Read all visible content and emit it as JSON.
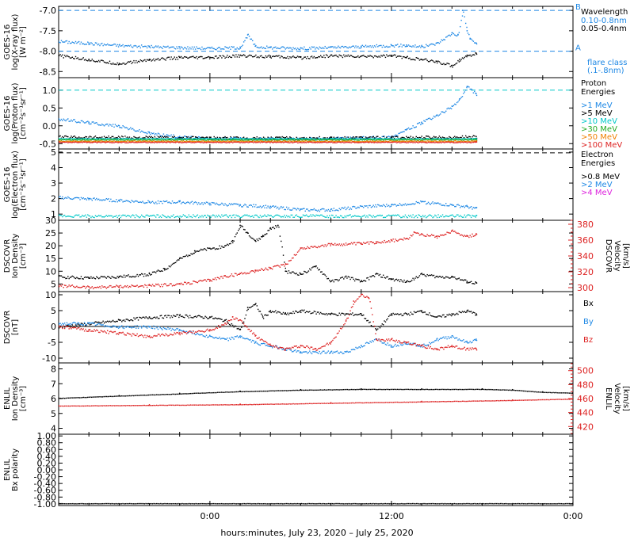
{
  "chart_data": {
    "type": "line",
    "xlabel": "hours:minutes, July 23, 2020 – July 25, 2020",
    "x_ticks": [
      "0:00",
      "12:00",
      "0:00"
    ],
    "panels": [
      {
        "id": "xray",
        "ylabel": [
          "GOES-16",
          "log(X-ray flux)",
          "[W m⁻²]"
        ],
        "yticks": [
          "-7.0",
          "-7.5",
          "-8.0",
          "-8.5"
        ],
        "ylim": [
          -8.65,
          -6.9
        ],
        "legend": {
          "title": "Wavelength",
          "items": [
            {
              "text": "0.10-0.8nm",
              "color": "#1e88e5"
            },
            {
              "text": "0.05-0.4nm",
              "color": "#000000"
            }
          ],
          "note": [
            "flare class",
            "(.1-.8nm)"
          ]
        },
        "flare_letters": [
          "B",
          "A"
        ],
        "reference_lines": [
          {
            "value": -7.0,
            "color": "#1e88e5"
          },
          {
            "value": -8.0,
            "color": "#1e88e5"
          }
        ],
        "series": [
          {
            "color": "#1e88e5",
            "x": [
              -10,
              -8,
              -6,
              -4,
              -2,
              0,
              2,
              2.5,
              3,
              4,
              6,
              8,
              10,
              12,
              13,
              14,
              15,
              16,
              16.4,
              16.7,
              17,
              17.2,
              17.6
            ],
            "y": [
              -7.75,
              -7.8,
              -7.85,
              -7.88,
              -7.9,
              -7.92,
              -7.9,
              -7.6,
              -7.88,
              -7.9,
              -7.92,
              -7.9,
              -7.88,
              -7.85,
              -7.85,
              -7.88,
              -7.8,
              -7.55,
              -7.6,
              -7.0,
              -7.5,
              -7.7,
              -7.8
            ]
          },
          {
            "color": "#000000",
            "x": [
              -10,
              -8,
              -6,
              -4,
              -2,
              0,
              2,
              4,
              6,
              8,
              10,
              12,
              13,
              14,
              15,
              16,
              16.5,
              17,
              17.6
            ],
            "y": [
              -8.1,
              -8.2,
              -8.3,
              -8.2,
              -8.15,
              -8.15,
              -8.1,
              -8.12,
              -8.15,
              -8.1,
              -8.12,
              -8.1,
              -8.15,
              -8.2,
              -8.25,
              -8.35,
              -8.2,
              -8.1,
              -8.05
            ]
          }
        ]
      },
      {
        "id": "proton",
        "ylabel": [
          "GOES-16",
          "log(Proton flux)",
          "[cm⁻²s⁻¹sr⁻¹]"
        ],
        "yticks": [
          "1.0",
          "0.5",
          "0.0",
          "-0.5"
        ],
        "ylim": [
          -0.65,
          1.35
        ],
        "legend": {
          "title": "Proton",
          "title2": "Energies",
          "items": [
            {
              "text": ">1 MeV",
              "color": "#1e88e5"
            },
            {
              "text": ">5 MeV",
              "color": "#000000"
            },
            {
              "text": ">10 MeV",
              "color": "#00c8c8"
            },
            {
              "text": ">30 MeV",
              "color": "#22aa22"
            },
            {
              "text": ">50 MeV",
              "color": "#f08000"
            },
            {
              "text": ">100 MeV",
              "color": "#dd2222"
            }
          ]
        },
        "reference_lines": [
          {
            "value": 1.0,
            "color": "#00c8c8"
          }
        ],
        "series": [
          {
            "color": "#1e88e5",
            "x": [
              -10,
              -8,
              -6,
              -4,
              -2,
              0,
              4,
              8,
              12,
              13,
              14,
              15,
              16,
              16.5,
              17,
              17.6
            ],
            "y": [
              0.2,
              0.1,
              0.0,
              -0.2,
              -0.3,
              -0.35,
              -0.35,
              -0.35,
              -0.3,
              -0.1,
              0.1,
              0.3,
              0.55,
              0.75,
              1.1,
              0.9
            ]
          },
          {
            "color": "#000000",
            "x": [
              -10,
              0,
              8,
              12,
              17.6
            ],
            "y": [
              -0.3,
              -0.33,
              -0.33,
              -0.32,
              -0.3
            ]
          },
          {
            "color": "#00c8c8",
            "x": [
              -10,
              17.6
            ],
            "y": [
              -0.35,
              -0.35
            ]
          },
          {
            "color": "#22aa22",
            "x": [
              -10,
              17.6
            ],
            "y": [
              -0.38,
              -0.38
            ]
          },
          {
            "color": "#f08000",
            "x": [
              -10,
              17.6
            ],
            "y": [
              -0.42,
              -0.42
            ]
          },
          {
            "color": "#dd2222",
            "x": [
              -10,
              17.6
            ],
            "y": [
              -0.45,
              -0.45
            ]
          }
        ]
      },
      {
        "id": "electron",
        "ylabel": [
          "GOES-16",
          "log(Electron flux)",
          "[cm⁻²s⁻¹sr⁻¹]"
        ],
        "yticks": [
          "5",
          "4",
          "3",
          "2",
          "1"
        ],
        "ylim": [
          0.6,
          5.2
        ],
        "legend": {
          "title": "Electron",
          "title2": "Energies",
          "items": [
            {
              "text": ">0.8 MeV",
              "color": "#000000"
            },
            {
              "text": ">2 MeV",
              "color": "#1e88e5"
            },
            {
              "text": ">4 MeV",
              "color": "#dd22dd"
            }
          ]
        },
        "reference_lines": [
          {
            "value": 4.95,
            "color": "#000000"
          }
        ],
        "series": [
          {
            "color": "#1e88e5",
            "x": [
              -10,
              -8,
              -6,
              -4,
              -2,
              0,
              2,
              4,
              6,
              8,
              10,
              12,
              14,
              15,
              16,
              17,
              17.6
            ],
            "y": [
              2.1,
              2.0,
              1.9,
              1.8,
              1.8,
              1.7,
              1.6,
              1.5,
              1.3,
              1.3,
              1.5,
              1.6,
              1.8,
              1.7,
              1.6,
              1.5,
              1.4
            ]
          },
          {
            "color": "#00c8c8",
            "x": [
              -10,
              17.6
            ],
            "y": [
              0.9,
              0.9
            ]
          }
        ]
      },
      {
        "id": "dscovr-density",
        "ylabel": [
          "DSCOVR",
          "Ion Density",
          "[cm⁻³]"
        ],
        "yticks": [
          "30",
          "25",
          "20",
          "15",
          "10",
          "5"
        ],
        "ylim": [
          2,
          30
        ],
        "right_ylabel": [
          "DSCOVR",
          "Velocity",
          "[km/s]"
        ],
        "right_yticks": [
          "380",
          "360",
          "340",
          "320",
          "300"
        ],
        "right_ylim": [
          295,
          385
        ],
        "series": [
          {
            "color": "#000000",
            "axis": "left",
            "x": [
              -10,
              -8,
              -6,
              -4,
              -3,
              -2,
              -1,
              0,
              1,
              1.5,
              2,
              2.5,
              3,
              3.5,
              4,
              4.5,
              5,
              6,
              7,
              8,
              9,
              10,
              11,
              12,
              13,
              14,
              15,
              16,
              17,
              17.6
            ],
            "y": [
              8,
              7.5,
              8,
              9,
              11,
              15,
              18,
              19,
              20,
              22,
              28,
              25,
              22,
              24,
              27,
              28,
              10,
              9,
              12,
              6,
              8,
              6,
              9,
              7,
              6,
              9,
              8,
              8,
              6,
              5.5
            ]
          },
          {
            "color": "#dd2222",
            "axis": "right",
            "x": [
              -10,
              -8,
              -6,
              -4,
              -2,
              0,
              1,
              2,
              3,
              4,
              5,
              6,
              8,
              10,
              11,
              12,
              13,
              13.5,
              14,
              15,
              16,
              17,
              17.6
            ],
            "y": [
              303,
              301,
              302,
              303,
              305,
              310,
              315,
              318,
              322,
              325,
              330,
              350,
              355,
              356,
              358,
              360,
              362,
              370,
              368,
              365,
              372,
              365,
              368
            ]
          }
        ]
      },
      {
        "id": "dscovr-b",
        "ylabel": [
          "DSCOVR",
          "[nT]"
        ],
        "yticks": [
          "10",
          "5",
          "0",
          "-5",
          "-10"
        ],
        "ylim": [
          -11.5,
          11
        ],
        "legend": {
          "items": [
            {
              "text": "Bx",
              "color": "#000000"
            },
            {
              "text": "By",
              "color": "#1e88e5"
            },
            {
              "text": "Bz",
              "color": "#dd2222"
            }
          ]
        },
        "series": [
          {
            "color": "#000000",
            "x": [
              -10,
              -8,
              -6,
              -4,
              -2,
              0,
              1,
              2,
              2.5,
              3,
              3.5,
              4,
              5,
              6,
              8,
              9,
              10,
              11,
              12,
              13,
              14,
              15,
              16,
              17,
              17.6
            ],
            "y": [
              0,
              1,
              2,
              3,
              3.5,
              3,
              2,
              -1,
              6,
              7,
              3,
              5,
              4,
              5,
              4,
              4,
              4,
              -1,
              4,
              4,
              5,
              3,
              4,
              5,
              4
            ]
          },
          {
            "color": "#1e88e5",
            "x": [
              -10,
              -8,
              -6,
              -4,
              -2,
              0,
              1,
              2,
              3,
              4,
              5,
              6,
              8,
              9,
              10,
              11,
              12,
              13,
              14,
              15,
              16,
              17,
              17.6
            ],
            "y": [
              1,
              1,
              0,
              0,
              -1,
              -3,
              -4,
              -3,
              -5,
              -6,
              -7,
              -8,
              -8,
              -8,
              -6,
              -4,
              -6,
              -5,
              -6,
              -4,
              -3,
              -5,
              -4
            ]
          },
          {
            "color": "#dd2222",
            "x": [
              -10,
              -8,
              -6,
              -4,
              -2,
              0,
              1,
              1.5,
              2,
              3,
              4,
              5,
              6,
              7,
              8,
              9,
              9.5,
              10,
              10.5,
              11,
              12,
              13,
              14,
              15,
              16,
              17,
              17.6
            ],
            "y": [
              0,
              -1,
              -2,
              -3,
              -2,
              -1,
              1,
              3,
              2,
              -3,
              -6,
              -7,
              -6,
              -7,
              -5,
              2,
              8,
              10,
              9,
              -4,
              -4,
              -5,
              -6,
              -7,
              -6,
              -7,
              -7
            ]
          }
        ]
      },
      {
        "id": "enlil-density",
        "ylabel": [
          "ENLIL",
          "Ion Density",
          "[cm⁻³]"
        ],
        "yticks": [
          "8",
          "7",
          "6",
          "5",
          "4"
        ],
        "ylim": [
          3.6,
          8.4
        ],
        "right_ylabel": [
          "ENLIL",
          "Velocity",
          "[km/s]"
        ],
        "right_yticks": [
          "500",
          "480",
          "460",
          "440",
          "420"
        ],
        "right_ylim": [
          409,
          511
        ],
        "series": [
          {
            "color": "#000000",
            "axis": "left",
            "x": [
              -10,
              -6,
              -2,
              2,
              6,
              10,
              14,
              18,
              20,
              22,
              24
            ],
            "y": [
              6.05,
              6.2,
              6.35,
              6.5,
              6.6,
              6.65,
              6.65,
              6.65,
              6.6,
              6.45,
              6.4
            ]
          },
          {
            "color": "#dd2222",
            "axis": "right",
            "x": [
              -10,
              -4,
              2,
              8,
              14,
              20,
              24
            ],
            "y": [
              450,
              451,
              452,
              454,
              456,
              458,
              460
            ]
          }
        ]
      },
      {
        "id": "enlil-bx",
        "ylabel": [
          "ENLIL",
          "Bx polarity"
        ],
        "yticks": [
          "1.00",
          "0.80",
          "0.60",
          "0.40",
          "0.20",
          "0.00",
          "-0.20",
          "-0.40",
          "-0.60",
          "-0.80",
          "-1.00"
        ],
        "ylim": [
          -1.05,
          1.05
        ],
        "series": [
          {
            "color": "#000000",
            "x": [
              -10,
              24
            ],
            "y": [
              -0.98,
              -0.98
            ]
          }
        ]
      }
    ]
  }
}
